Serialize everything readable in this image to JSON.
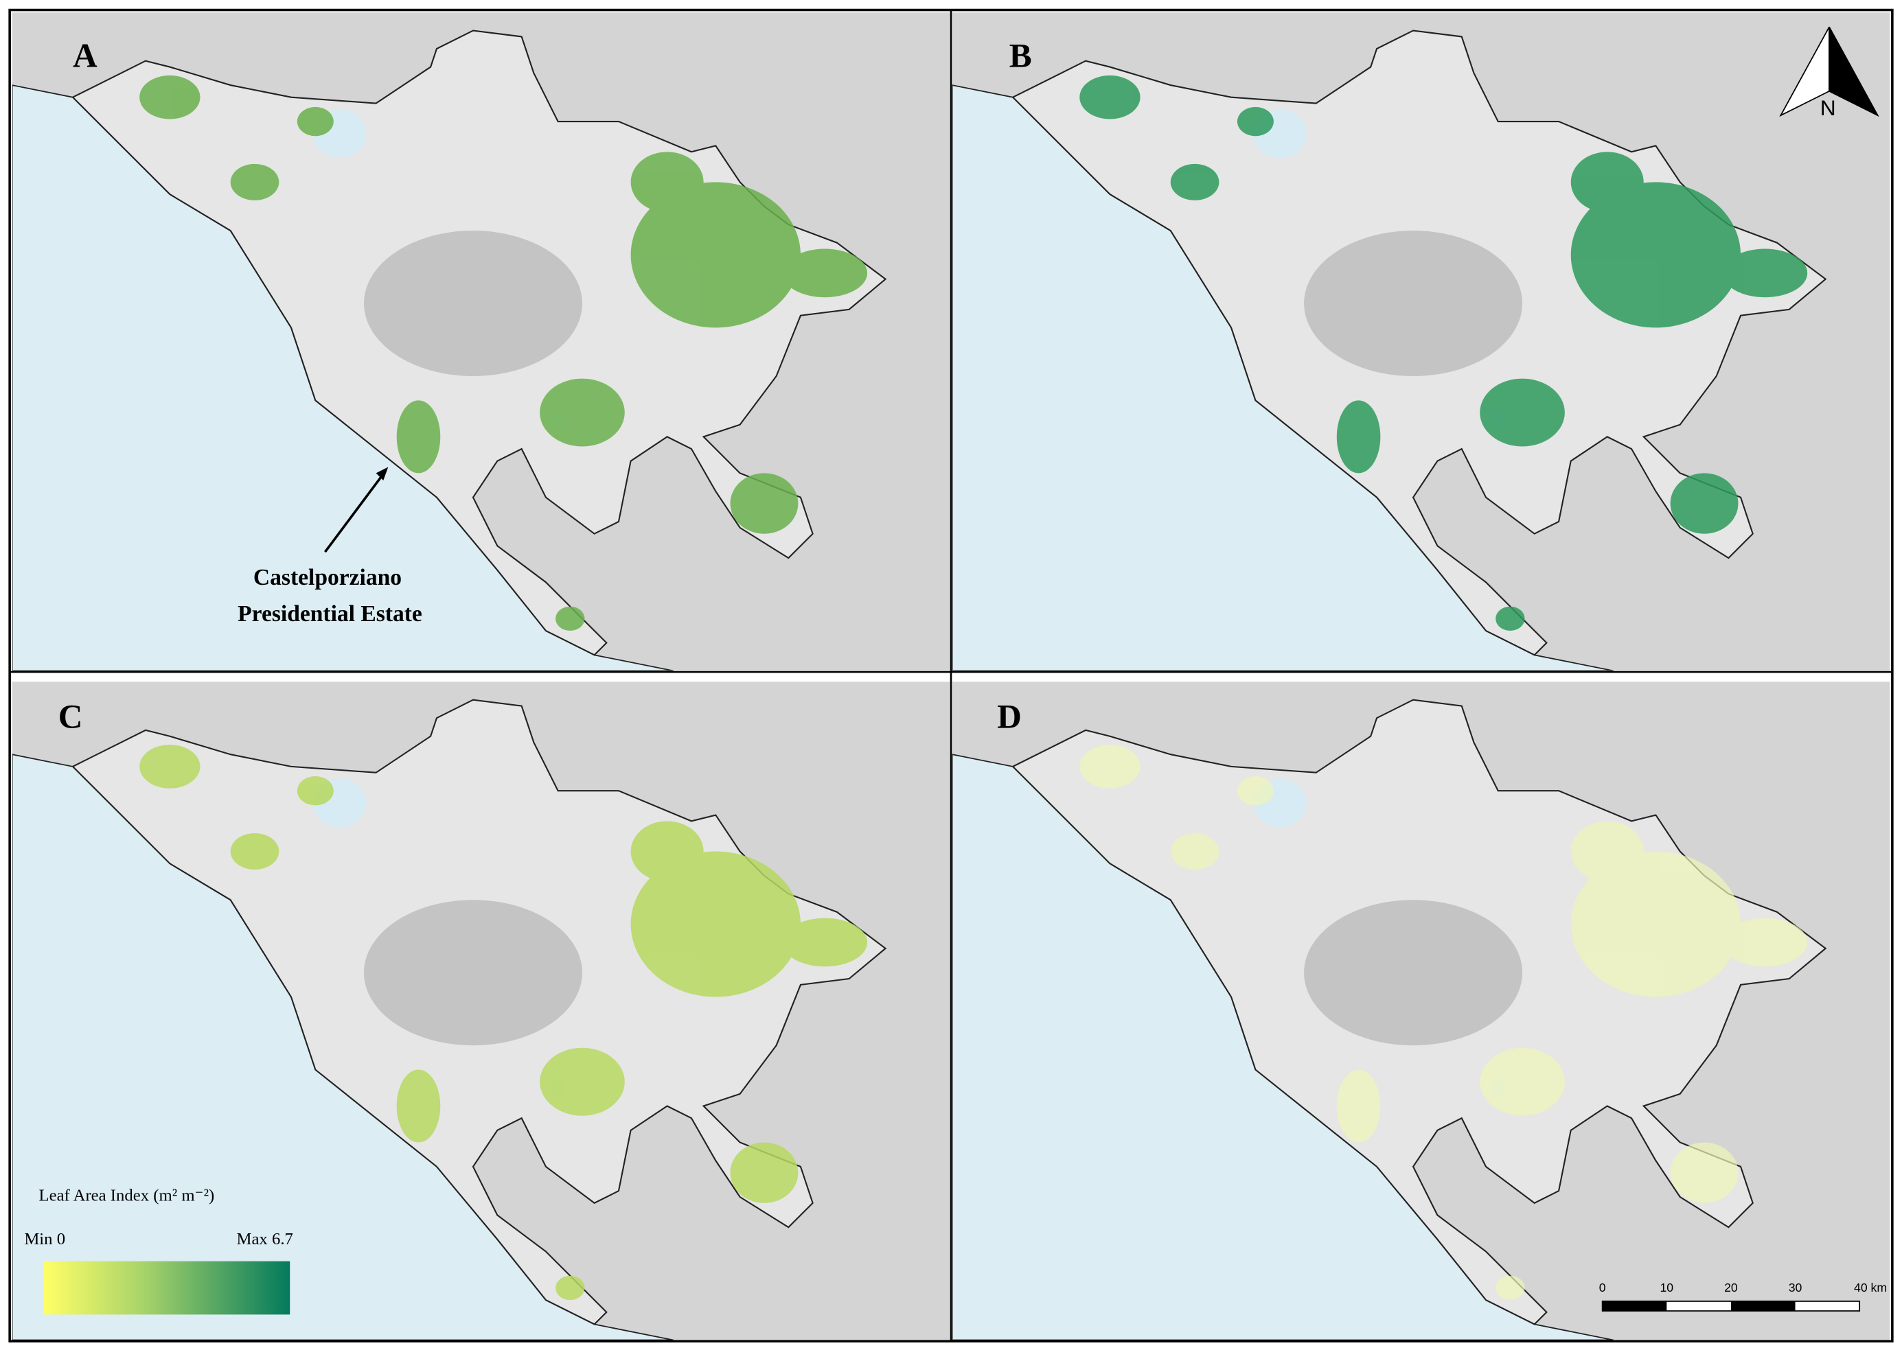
{
  "panels": [
    {
      "label": "A"
    },
    {
      "label": "B"
    },
    {
      "label": "C"
    },
    {
      "label": "D"
    }
  ],
  "annotation": {
    "lines": [
      "Castelporziano",
      "Presidential Estate"
    ]
  },
  "north_arrow": {
    "label": "N"
  },
  "legend": {
    "title": "Leaf Area Index (m² m⁻²)",
    "min_label": "Min 0",
    "max_label": "Max 6.7"
  },
  "scale_bar": {
    "labels": [
      "0",
      "10",
      "20",
      "30",
      "40 km"
    ]
  }
}
